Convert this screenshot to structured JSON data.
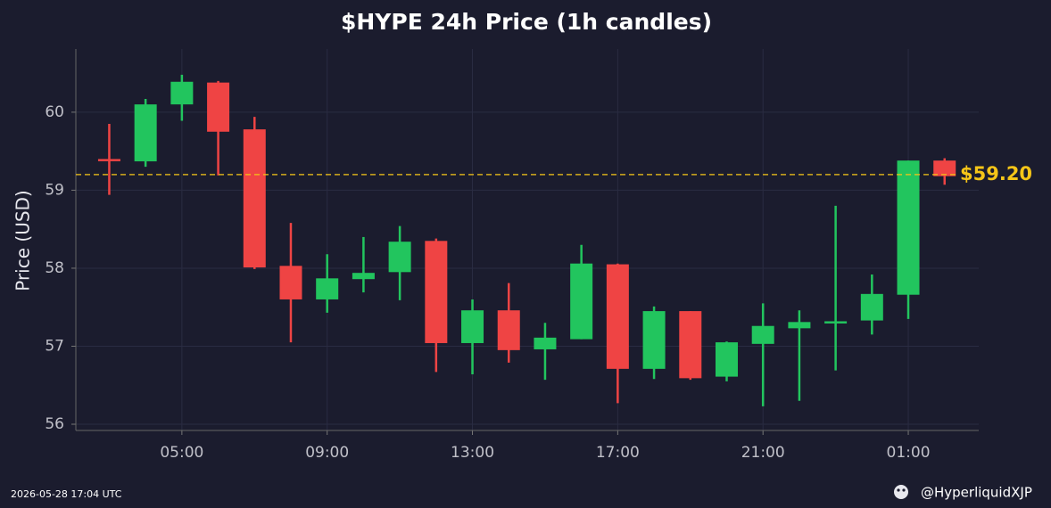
{
  "chart_data": {
    "type": "candlestick",
    "title": "$HYPE 24h Price (1h candles)",
    "y_label": "Price (USD)",
    "x": [
      "03:00",
      "04:00",
      "05:00",
      "06:00",
      "07:00",
      "08:00",
      "09:00",
      "10:00",
      "11:00",
      "12:00",
      "13:00",
      "14:00",
      "15:00",
      "16:00",
      "17:00",
      "18:00",
      "19:00",
      "20:00",
      "21:00",
      "22:00",
      "23:00",
      "00:00",
      "01:00",
      "02:00"
    ],
    "open": [
      59.4,
      59.37,
      60.1,
      60.38,
      59.78,
      58.03,
      57.6,
      57.86,
      57.95,
      58.35,
      57.04,
      57.46,
      56.96,
      57.09,
      58.05,
      56.71,
      57.45,
      56.61,
      57.03,
      57.23,
      57.3,
      57.33,
      57.66,
      59.38
    ],
    "high": [
      59.85,
      60.17,
      60.48,
      60.4,
      59.94,
      58.58,
      58.18,
      58.4,
      58.54,
      58.38,
      57.6,
      57.81,
      57.3,
      58.3,
      58.06,
      57.51,
      57.45,
      57.06,
      57.55,
      57.46,
      58.8,
      57.92,
      59.38,
      59.41
    ],
    "low": [
      58.94,
      59.3,
      59.89,
      59.19,
      57.99,
      57.05,
      57.43,
      57.69,
      57.59,
      56.67,
      56.64,
      56.79,
      56.57,
      57.09,
      56.27,
      56.58,
      56.57,
      56.55,
      56.23,
      56.3,
      56.69,
      57.15,
      57.35,
      59.07
    ],
    "close": [
      59.39,
      60.1,
      60.39,
      59.75,
      58.01,
      57.6,
      57.87,
      57.94,
      58.34,
      57.04,
      57.46,
      56.95,
      57.11,
      58.06,
      56.71,
      57.45,
      56.59,
      57.05,
      57.26,
      57.31,
      57.32,
      57.67,
      59.38,
      59.18
    ],
    "colors": {
      "up": "#22c55e",
      "down": "#ef4444"
    },
    "ylim": [
      55.92,
      60.81
    ],
    "yticks": [
      56,
      57,
      58,
      59,
      60
    ],
    "xticks": [
      "05:00",
      "09:00",
      "13:00",
      "17:00",
      "21:00",
      "01:00"
    ],
    "grid": true,
    "last_price": 59.2,
    "last_price_label": "$59.20",
    "last_price_color": "#f5c518",
    "timestamp": "2026-05-28 17:04 UTC",
    "handle": "@HyperliquidXJP"
  }
}
